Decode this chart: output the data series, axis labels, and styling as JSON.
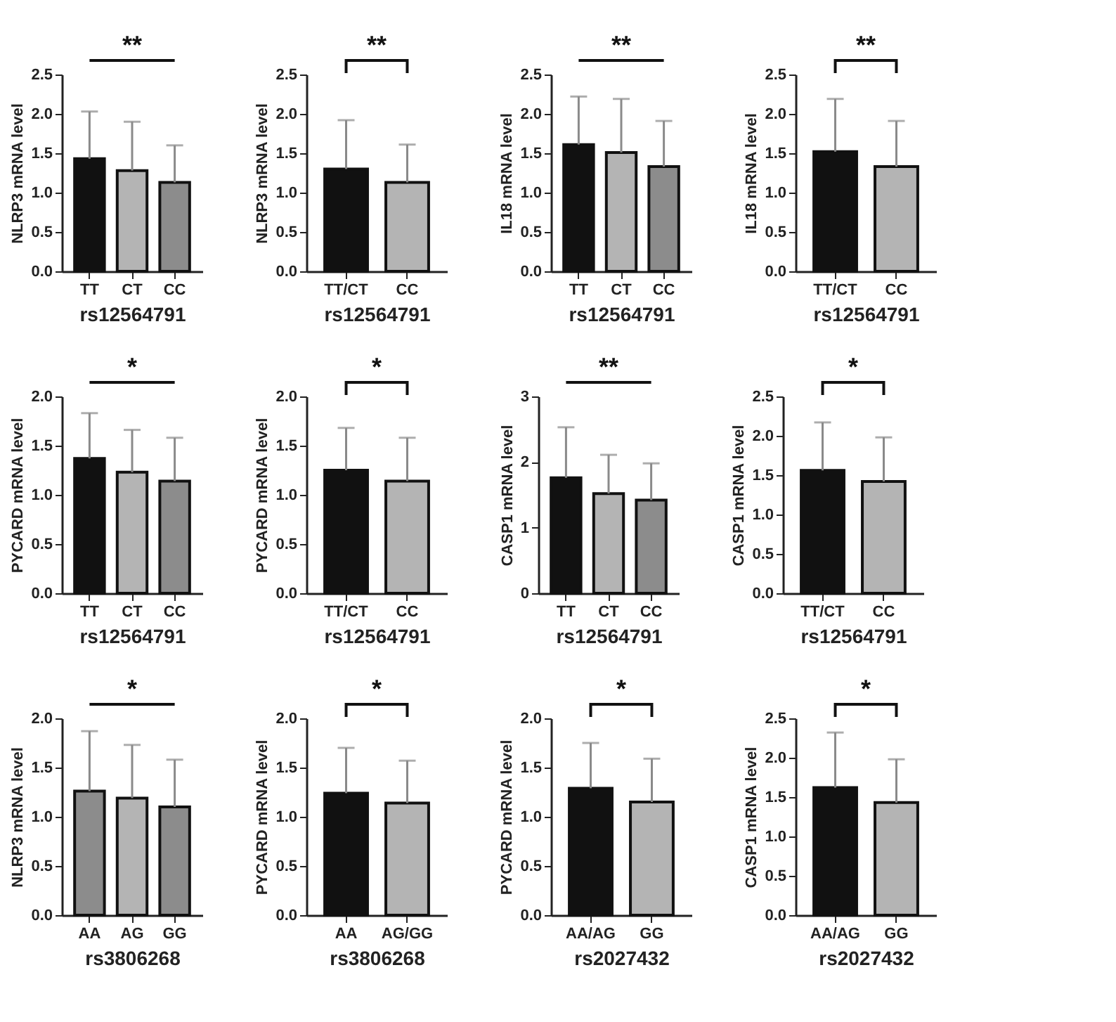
{
  "chart_data": [
    {
      "type": "bar",
      "categories": [
        "TT",
        "CT",
        "CC"
      ],
      "values": [
        1.43,
        1.28,
        1.13
      ],
      "errors": [
        [
          1.43,
          2.03
        ],
        [
          1.28,
          1.9
        ],
        [
          1.13,
          1.6
        ]
      ],
      "colors": [
        "#111111",
        "#b4b4b4",
        "#8c8c8c"
      ],
      "ylabel": "NLRP3 mRNA level",
      "xlabel": "rs12564791",
      "ylim": [
        0,
        2.5
      ],
      "yticks": [
        {
          "value": 0,
          "label": "0.0"
        },
        0.5,
        {
          "value": 1,
          "label": "1.0"
        },
        1.5,
        {
          "value": 2,
          "label": "2.0"
        },
        2.5
      ],
      "annotations": [
        "**"
      ],
      "grid": false
    },
    {
      "type": "bar",
      "categories": [
        "TT/CT",
        "CC"
      ],
      "values": [
        1.3,
        1.13
      ],
      "errors": [
        [
          1.3,
          1.92
        ],
        [
          1.13,
          1.61
        ]
      ],
      "colors": [
        "#111111",
        "#b4b4b4"
      ],
      "ylabel": "NLRP3 mRNA level",
      "xlabel": "rs12564791",
      "ylim": [
        0,
        2.5
      ],
      "yticks": [
        {
          "value": 0,
          "label": "0.0"
        },
        0.5,
        {
          "value": 1,
          "label": "1.0"
        },
        1.5,
        {
          "value": 2,
          "label": "2.0"
        },
        2.5
      ],
      "annotations": [
        "**"
      ],
      "grid": false
    },
    {
      "type": "bar",
      "categories": [
        "TT",
        "CT",
        "CC"
      ],
      "values": [
        1.61,
        1.51,
        1.33
      ],
      "errors": [
        [
          1.61,
          2.22
        ],
        [
          1.51,
          2.19
        ],
        [
          1.33,
          1.91
        ]
      ],
      "colors": [
        "#111111",
        "#b4b4b4",
        "#8c8c8c"
      ],
      "ylabel": "IL18 mRNA level",
      "xlabel": "rs12564791",
      "ylim": [
        0,
        2.5
      ],
      "yticks": [
        {
          "value": 0,
          "label": "0.0"
        },
        0.5,
        {
          "value": 1,
          "label": "1.0"
        },
        1.5,
        {
          "value": 2,
          "label": "2.0"
        },
        2.5
      ],
      "annotations": [
        "**"
      ],
      "grid": false
    },
    {
      "type": "bar",
      "categories": [
        "TT/CT",
        "CC"
      ],
      "values": [
        1.52,
        1.33
      ],
      "errors": [
        [
          1.52,
          2.19
        ],
        [
          1.33,
          1.91
        ]
      ],
      "colors": [
        "#111111",
        "#b4b4b4"
      ],
      "ylabel": "IL18 mRNA level",
      "xlabel": "rs12564791",
      "ylim": [
        0,
        2.5
      ],
      "yticks": [
        {
          "value": 0,
          "label": "0.0"
        },
        0.5,
        {
          "value": 1,
          "label": "1.0"
        },
        1.5,
        {
          "value": 2,
          "label": "2.0"
        },
        2.5
      ],
      "annotations": [
        "**"
      ],
      "grid": false
    },
    {
      "type": "bar",
      "categories": [
        "TT",
        "CT",
        "CC"
      ],
      "values": [
        1.37,
        1.23,
        1.14
      ],
      "errors": [
        [
          1.37,
          1.83
        ],
        [
          1.23,
          1.66
        ],
        [
          1.14,
          1.58
        ]
      ],
      "colors": [
        "#111111",
        "#b4b4b4",
        "#8c8c8c"
      ],
      "ylabel": "PYCARD mRNA level",
      "xlabel": "rs12564791",
      "ylim": [
        0,
        2
      ],
      "yticks": [
        {
          "value": 0,
          "label": "0.0"
        },
        0.5,
        {
          "value": 1,
          "label": "1.0"
        },
        1.5,
        {
          "value": 2,
          "label": "2.0"
        }
      ],
      "annotations": [
        "*"
      ],
      "grid": false
    },
    {
      "type": "bar",
      "categories": [
        "TT/CT",
        "CC"
      ],
      "values": [
        1.25,
        1.14
      ],
      "errors": [
        [
          1.25,
          1.68
        ],
        [
          1.14,
          1.58
        ]
      ],
      "colors": [
        "#111111",
        "#b4b4b4"
      ],
      "ylabel": "PYCARD mRNA level",
      "xlabel": "rs12564791",
      "ylim": [
        0,
        2
      ],
      "yticks": [
        {
          "value": 0,
          "label": "0.0"
        },
        0.5,
        {
          "value": 1,
          "label": "1.0"
        },
        1.5,
        {
          "value": 2,
          "label": "2.0"
        }
      ],
      "annotations": [
        "*"
      ],
      "grid": false
    },
    {
      "type": "bar",
      "categories": [
        "TT",
        "CT",
        "CC"
      ],
      "values": [
        1.76,
        1.52,
        1.42
      ],
      "errors": [
        [
          1.76,
          2.53
        ],
        [
          1.52,
          2.11
        ],
        [
          1.42,
          1.98
        ]
      ],
      "colors": [
        "#111111",
        "#b4b4b4",
        "#8c8c8c"
      ],
      "ylabel": "CASP1 mRNA level",
      "xlabel": "rs12564791",
      "ylim": [
        0,
        3
      ],
      "yticks": [
        0,
        1,
        2,
        3
      ],
      "annotations": [
        "**"
      ],
      "grid": false
    },
    {
      "type": "bar",
      "categories": [
        "TT/CT",
        "CC"
      ],
      "values": [
        1.56,
        1.42
      ],
      "errors": [
        [
          1.56,
          2.17
        ],
        [
          1.42,
          1.98
        ]
      ],
      "colors": [
        "#111111",
        "#b4b4b4"
      ],
      "ylabel": "CASP1 mRNA level",
      "xlabel": "rs12564791",
      "ylim": [
        0,
        2.5
      ],
      "yticks": [
        {
          "value": 0,
          "label": "0.0"
        },
        0.5,
        {
          "value": 1,
          "label": "1.0"
        },
        1.5,
        {
          "value": 2,
          "label": "2.0"
        },
        2.5
      ],
      "annotations": [
        "*"
      ],
      "grid": false
    },
    {
      "type": "bar",
      "categories": [
        "AA",
        "AG",
        "GG"
      ],
      "values": [
        1.26,
        1.19,
        1.1
      ],
      "errors": [
        [
          1.26,
          1.87
        ],
        [
          1.19,
          1.73
        ],
        [
          1.1,
          1.58
        ]
      ],
      "colors": [
        "#8c8c8c",
        "#b4b4b4",
        "#8c8c8c"
      ],
      "ylabel": "NLRP3 mRNA level",
      "xlabel": "rs3806268",
      "ylim": [
        0,
        2
      ],
      "yticks": [
        {
          "value": 0,
          "label": "0.0"
        },
        0.5,
        {
          "value": 1,
          "label": "1.0"
        },
        1.5,
        {
          "value": 2,
          "label": "2.0"
        }
      ],
      "annotations": [
        "*"
      ],
      "grid": false
    },
    {
      "type": "bar",
      "categories": [
        "AA",
        "AG/GG"
      ],
      "values": [
        1.24,
        1.14
      ],
      "errors": [
        [
          1.24,
          1.7
        ],
        [
          1.14,
          1.57
        ]
      ],
      "colors": [
        "#111111",
        "#b4b4b4"
      ],
      "ylabel": "PYCARD mRNA level",
      "xlabel": "rs3806268",
      "ylim": [
        0,
        2
      ],
      "yticks": [
        {
          "value": 0,
          "label": "0.0"
        },
        0.5,
        {
          "value": 1,
          "label": "1.0"
        },
        1.5,
        {
          "value": 2,
          "label": "2.0"
        }
      ],
      "annotations": [
        "*"
      ],
      "grid": false
    },
    {
      "type": "bar",
      "categories": [
        "AA/AG",
        "GG"
      ],
      "values": [
        1.29,
        1.15
      ],
      "errors": [
        [
          1.29,
          1.75
        ],
        [
          1.15,
          1.59
        ]
      ],
      "colors": [
        "#111111",
        "#b4b4b4"
      ],
      "ylabel": "PYCARD mRNA level",
      "xlabel": "rs2027432",
      "ylim": [
        0,
        2
      ],
      "yticks": [
        {
          "value": 0,
          "label": "0.0"
        },
        0.5,
        {
          "value": 1,
          "label": "1.0"
        },
        1.5,
        {
          "value": 2,
          "label": "2.0"
        }
      ],
      "annotations": [
        "*"
      ],
      "grid": false
    },
    {
      "type": "bar",
      "categories": [
        "AA/AG",
        "GG"
      ],
      "values": [
        1.62,
        1.43
      ],
      "errors": [
        [
          1.62,
          2.32
        ],
        [
          1.43,
          1.98
        ]
      ],
      "colors": [
        "#111111",
        "#b4b4b4"
      ],
      "ylabel": "CASP1 mRNA level",
      "xlabel": "rs2027432",
      "ylim": [
        0,
        2.5
      ],
      "yticks": [
        {
          "value": 0,
          "label": "0.0"
        },
        0.5,
        {
          "value": 1,
          "label": "1.0"
        },
        1.5,
        {
          "value": 2,
          "label": "2.0"
        },
        2.5
      ],
      "annotations": [
        "*"
      ],
      "grid": false
    }
  ]
}
